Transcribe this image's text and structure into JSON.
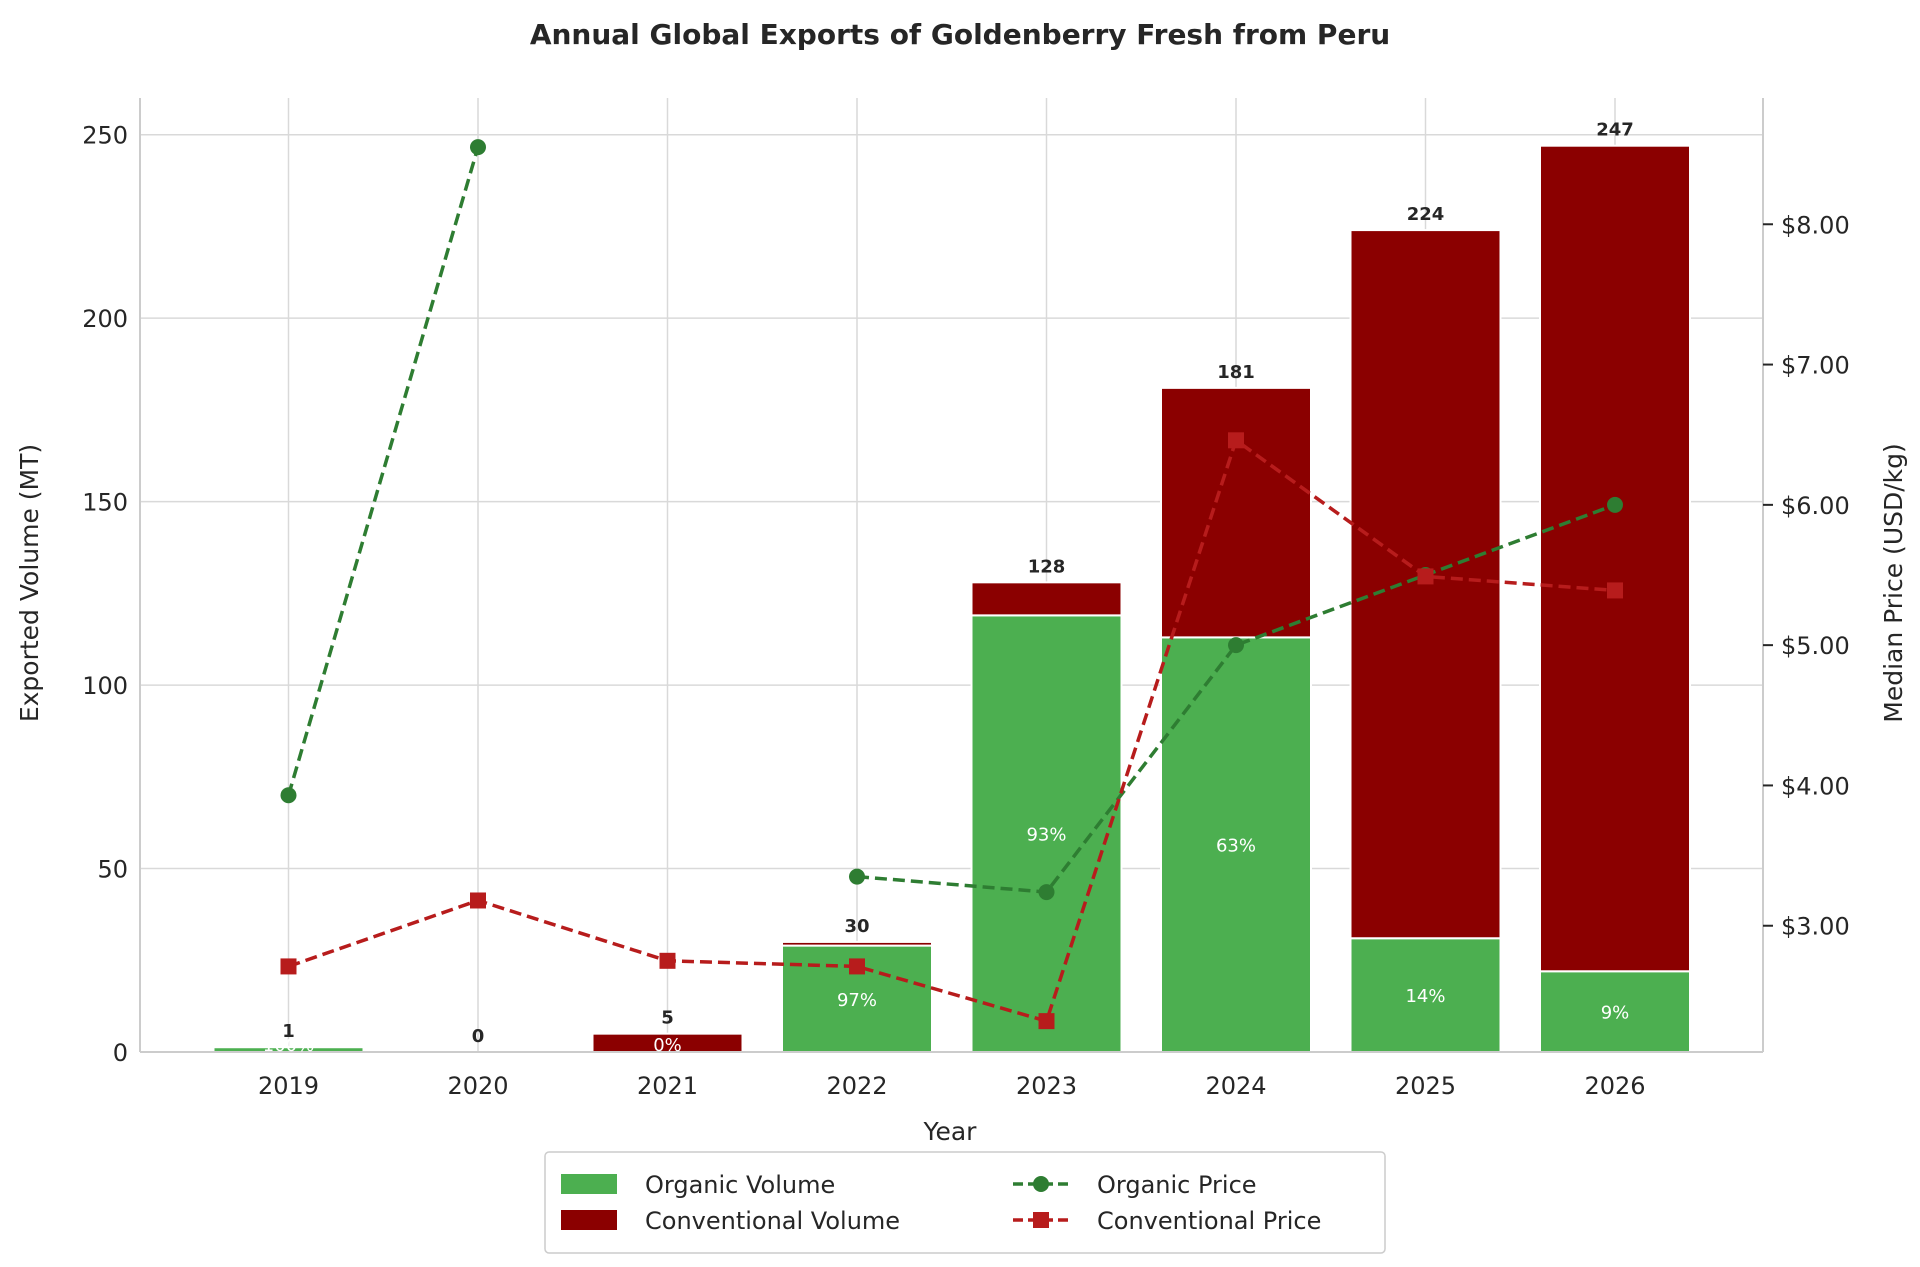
{
  "chart_data": {
    "type": "bar",
    "title": "Annual Global Exports of Goldenberry Fresh from Peru",
    "xlabel": "Year",
    "ylabel": "Exported Volume (MT)",
    "y2label": "Median Price (USD/kg)",
    "categories": [
      "2019",
      "2020",
      "2021",
      "2022",
      "2023",
      "2024",
      "2025",
      "2026"
    ],
    "ylim": [
      0,
      260
    ],
    "yticks": [
      0,
      50,
      100,
      150,
      200,
      250
    ],
    "y2lim": [
      2.1,
      8.9
    ],
    "y2ticks": [
      3,
      4,
      5,
      6,
      7,
      8
    ],
    "y2tick_labels": [
      "$3.00",
      "$4.00",
      "$5.00",
      "$6.00",
      "$7.00",
      "$8.00"
    ],
    "grid": true,
    "legend_position": "bottom-center",
    "series": [
      {
        "name": "Organic Volume",
        "kind": "bar",
        "stack": "volume",
        "color": "#4caf50",
        "values": [
          1.3,
          0,
          0,
          29,
          119,
          113,
          31,
          22
        ]
      },
      {
        "name": "Conventional Volume",
        "kind": "bar",
        "stack": "volume",
        "color": "#8b0000",
        "values": [
          0,
          0,
          5,
          1,
          9,
          68,
          193,
          225
        ]
      },
      {
        "name": "Organic Price",
        "kind": "line",
        "axis": "y2",
        "marker": "circle",
        "dash": true,
        "color": "#2e7d32",
        "values": [
          3.93,
          8.55,
          null,
          3.35,
          3.24,
          5.0,
          5.5,
          6.0
        ]
      },
      {
        "name": "Conventional Price",
        "kind": "line",
        "axis": "y2",
        "marker": "square",
        "dash": true,
        "color": "#b71c1c",
        "values": [
          2.71,
          3.18,
          2.75,
          2.71,
          2.32,
          6.46,
          5.49,
          5.39
        ]
      }
    ],
    "total_labels": [
      "1",
      "0",
      "5",
      "30",
      "128",
      "181",
      "224",
      "247"
    ],
    "organic_share_labels": [
      "100%",
      "",
      "0%",
      "97%",
      "93%",
      "63%",
      "14%",
      "9%"
    ]
  }
}
